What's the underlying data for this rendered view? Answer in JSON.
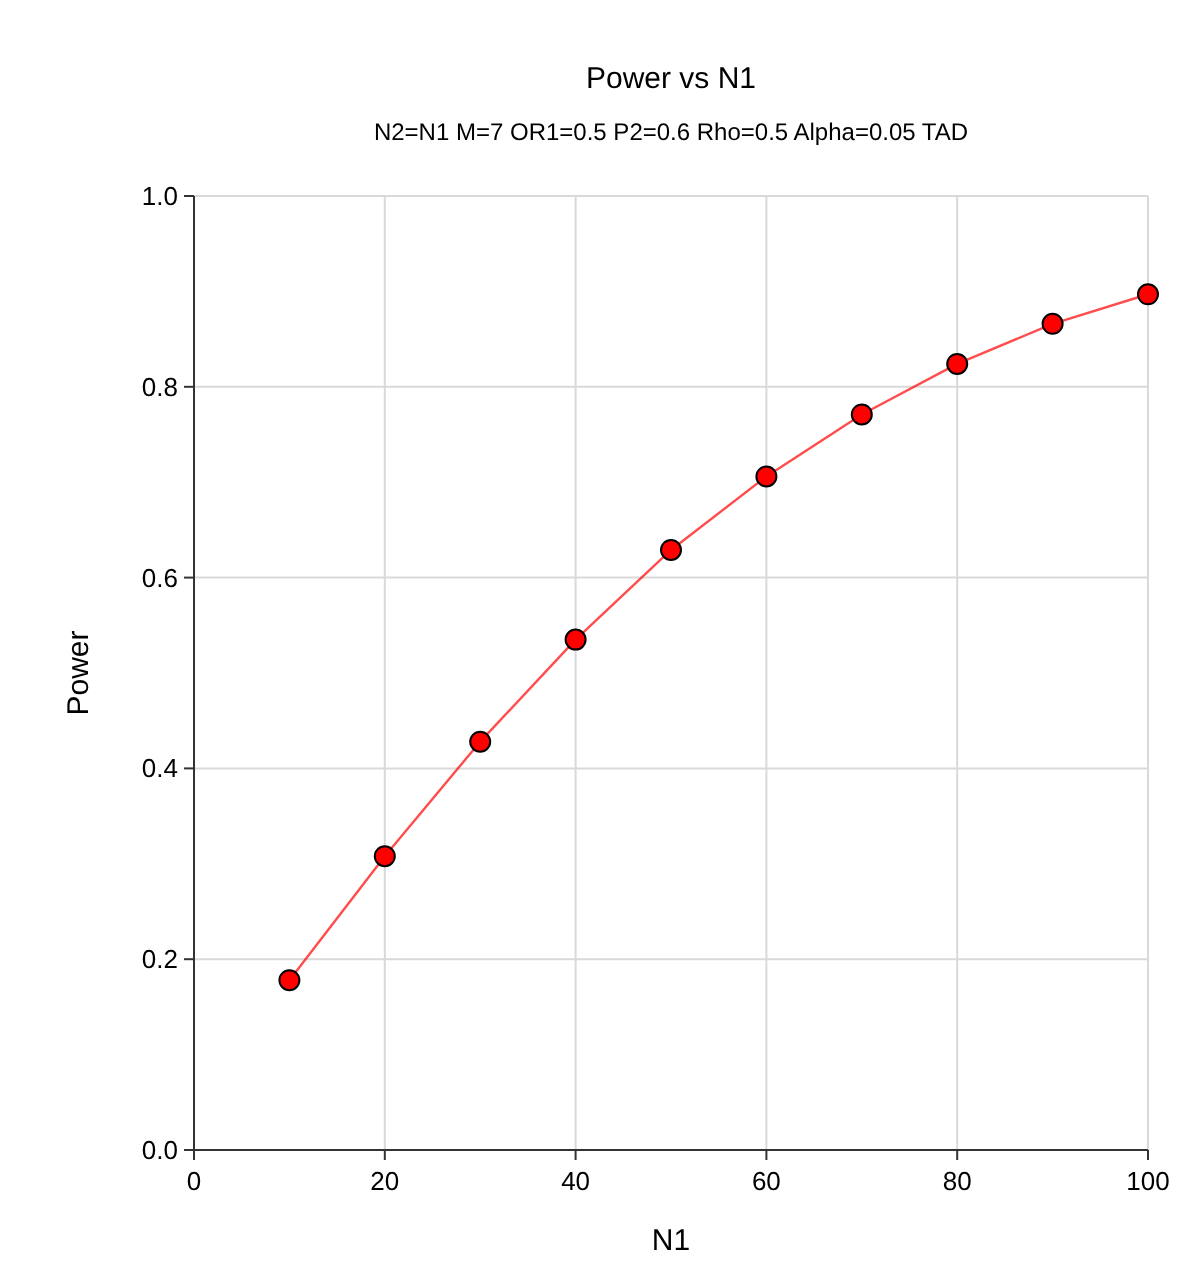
{
  "chart_data": {
    "type": "line",
    "title": "Power vs N1",
    "subtitle": "N2=N1 M=7 OR1=0.5 P2=0.6 Rho=0.5 Alpha=0.05 TAD",
    "xlabel": "N1",
    "ylabel": "Power",
    "x": [
      10,
      20,
      30,
      40,
      50,
      60,
      70,
      80,
      90,
      100
    ],
    "series": [
      {
        "color": "#ff0000",
        "values": [
          0.178,
          0.308,
          0.428,
          0.535,
          0.629,
          0.706,
          0.771,
          0.824,
          0.866,
          0.897
        ]
      }
    ],
    "xlim": [
      0,
      100
    ],
    "xticks": [
      0,
      20,
      40,
      60,
      80,
      100
    ],
    "ylim": [
      0,
      1
    ],
    "yticks": [
      {
        "value": 0,
        "label": "0.0"
      },
      {
        "value": 0.2,
        "label": "0.2"
      },
      {
        "value": 0.4,
        "label": "0.4"
      },
      {
        "value": 0.6,
        "label": "0.6"
      },
      {
        "value": 0.8,
        "label": "0.8"
      },
      {
        "value": 1,
        "label": "1.0"
      }
    ],
    "grid": true,
    "marker": "circle",
    "line_style": "solid"
  }
}
